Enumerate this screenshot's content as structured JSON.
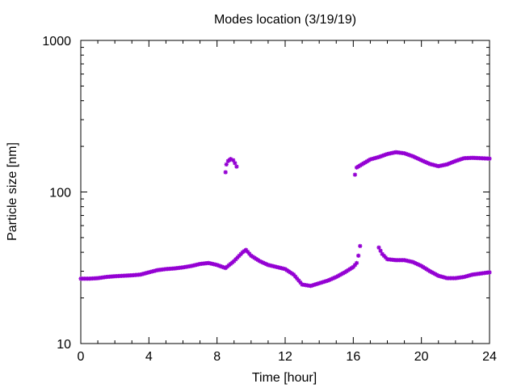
{
  "chart_data": {
    "type": "scatter",
    "title": "Modes location (3/19/19)",
    "xlabel": "Time [hour]",
    "ylabel": "Particle size [nm]",
    "xlim": [
      0,
      24
    ],
    "ylim": [
      10,
      1000
    ],
    "yscale": "log",
    "grid": false,
    "legend": "none",
    "xticks": [
      0,
      4,
      8,
      12,
      16,
      20,
      24
    ],
    "xtick_labels": [
      "0",
      "4",
      "8",
      "12",
      "16",
      "20",
      "24"
    ],
    "yticks": [
      10,
      100,
      1000
    ],
    "ytick_labels": [
      "10",
      "100",
      "1000"
    ],
    "marker_color": "#9400d3",
    "series": [
      {
        "points": [
          [
            0,
            26.8
          ],
          [
            0.5,
            26.8
          ],
          [
            1,
            27
          ],
          [
            1.5,
            27.5
          ],
          [
            2,
            27.8
          ],
          [
            2.5,
            28
          ],
          [
            3,
            28.2
          ],
          [
            3.5,
            28.5
          ],
          [
            4,
            29.5
          ],
          [
            4.5,
            30.5
          ],
          [
            5,
            31
          ],
          [
            5.5,
            31.3
          ],
          [
            6,
            31.8
          ],
          [
            6.5,
            32.5
          ],
          [
            7,
            33.5
          ],
          [
            7.5,
            34
          ],
          [
            8,
            33
          ],
          [
            8.5,
            31.5
          ],
          [
            9,
            35
          ],
          [
            9.5,
            40
          ],
          [
            9.7,
            41.5
          ],
          [
            10,
            38
          ],
          [
            10.5,
            35
          ],
          [
            11,
            33
          ],
          [
            11.5,
            32
          ],
          [
            12,
            31
          ],
          [
            12.5,
            28.5
          ],
          [
            13,
            24.5
          ],
          [
            13.5,
            24
          ],
          [
            14,
            25
          ],
          [
            14.5,
            26
          ],
          [
            15,
            27.5
          ],
          [
            15.5,
            29.5
          ],
          [
            16,
            32
          ],
          [
            16.2,
            34
          ],
          [
            16.3,
            38
          ],
          [
            16.4,
            44
          ],
          [
            17.5,
            43
          ],
          [
            17.7,
            39
          ],
          [
            18,
            36
          ],
          [
            18.5,
            35.5
          ],
          [
            19,
            35.5
          ],
          [
            19.5,
            34.5
          ],
          [
            20,
            32.5
          ],
          [
            20.5,
            30
          ],
          [
            21,
            28
          ],
          [
            21.5,
            27
          ],
          [
            22,
            27
          ],
          [
            22.5,
            27.5
          ],
          [
            23,
            28.5
          ],
          [
            23.5,
            29
          ],
          [
            24,
            29.5
          ]
        ]
      },
      {
        "points": [
          [
            8.5,
            135
          ],
          [
            8.55,
            152
          ],
          [
            8.65,
            160
          ],
          [
            8.8,
            165
          ],
          [
            8.95,
            162
          ],
          [
            9.05,
            155
          ],
          [
            9.15,
            147
          ],
          [
            16.1,
            130
          ],
          [
            16.2,
            145
          ],
          [
            16.5,
            152
          ],
          [
            17,
            164
          ],
          [
            17.5,
            170
          ],
          [
            18,
            178
          ],
          [
            18.5,
            183
          ],
          [
            19,
            180
          ],
          [
            19.5,
            172
          ],
          [
            20,
            162
          ],
          [
            20.5,
            153
          ],
          [
            21,
            148
          ],
          [
            21.5,
            152
          ],
          [
            22,
            160
          ],
          [
            22.5,
            167
          ],
          [
            23,
            168
          ],
          [
            23.5,
            167
          ],
          [
            24,
            166
          ]
        ]
      }
    ]
  }
}
